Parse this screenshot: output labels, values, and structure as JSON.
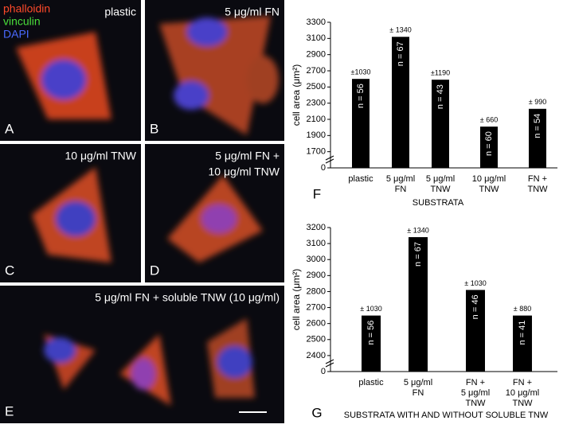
{
  "panels": [
    {
      "letter": "A",
      "caption": [
        "plastic"
      ],
      "stains": [
        "phalloidin",
        "vinculin",
        "DAPI"
      ]
    },
    {
      "letter": "B",
      "caption": [
        "5 μg/ml FN"
      ]
    },
    {
      "letter": "C",
      "caption": [
        "10 μg/ml TNW"
      ]
    },
    {
      "letter": "D",
      "caption": [
        "5 μg/ml FN +",
        "10 μg/ml TNW"
      ]
    },
    {
      "letter": "E",
      "caption": [
        "5 μg/ml FN + soluble TNW (10 μg/ml)"
      ]
    }
  ],
  "chart_data": [
    {
      "type": "bar",
      "letter": "F",
      "ylabel": "cell area (μm²)",
      "xlabel": "SUBSTRATA",
      "categories": [
        [
          "plastic"
        ],
        [
          "5 μg/ml",
          "FN"
        ],
        [
          "5 μg/ml",
          "TNW"
        ],
        [
          "10 μg/ml",
          "TNW"
        ],
        [
          "FN +",
          "TNW"
        ]
      ],
      "values": [
        2600,
        3120,
        2590,
        2010,
        2230
      ],
      "errors": [
        1030,
        1340,
        1190,
        660,
        990
      ],
      "error_labels": [
        "±1030",
        "± 1340",
        "±1190",
        "± 660",
        "± 990"
      ],
      "bar_labels": [
        "n = 56",
        "n = 67",
        "n = 43",
        "n = 60",
        "n = 54"
      ],
      "color": "#000000",
      "ylim": [
        0,
        3300
      ],
      "y_break": [
        0,
        1500
      ],
      "yticks": [
        0,
        1700,
        1900,
        2100,
        2300,
        2500,
        2700,
        2900,
        3100,
        3300
      ]
    },
    {
      "type": "bar",
      "letter": "G",
      "ylabel": "cell area (μm²)",
      "xlabel": "SUBSTRATA WITH AND WITHOUT SOLUBLE TNW",
      "categories": [
        [
          "plastic"
        ],
        [
          "5 μg/ml",
          "FN"
        ],
        [
          "FN +",
          "5 μg/ml",
          "TNW"
        ],
        [
          "FN +",
          "10 μg/ml",
          "TNW"
        ]
      ],
      "values": [
        2650,
        3140,
        2810,
        2650
      ],
      "errors": [
        1030,
        1340,
        1030,
        880
      ],
      "error_labels": [
        "± 1030",
        "± 1340",
        "± 1030",
        "± 880"
      ],
      "bar_labels": [
        "n = 56",
        "n = 67",
        "n = 46",
        "n = 41"
      ],
      "color": "#000000",
      "ylim": [
        0,
        3200
      ],
      "y_break": [
        0,
        2300
      ],
      "yticks": [
        0,
        2400,
        2500,
        2600,
        2700,
        2800,
        2900,
        3000,
        3100,
        3200
      ]
    }
  ]
}
